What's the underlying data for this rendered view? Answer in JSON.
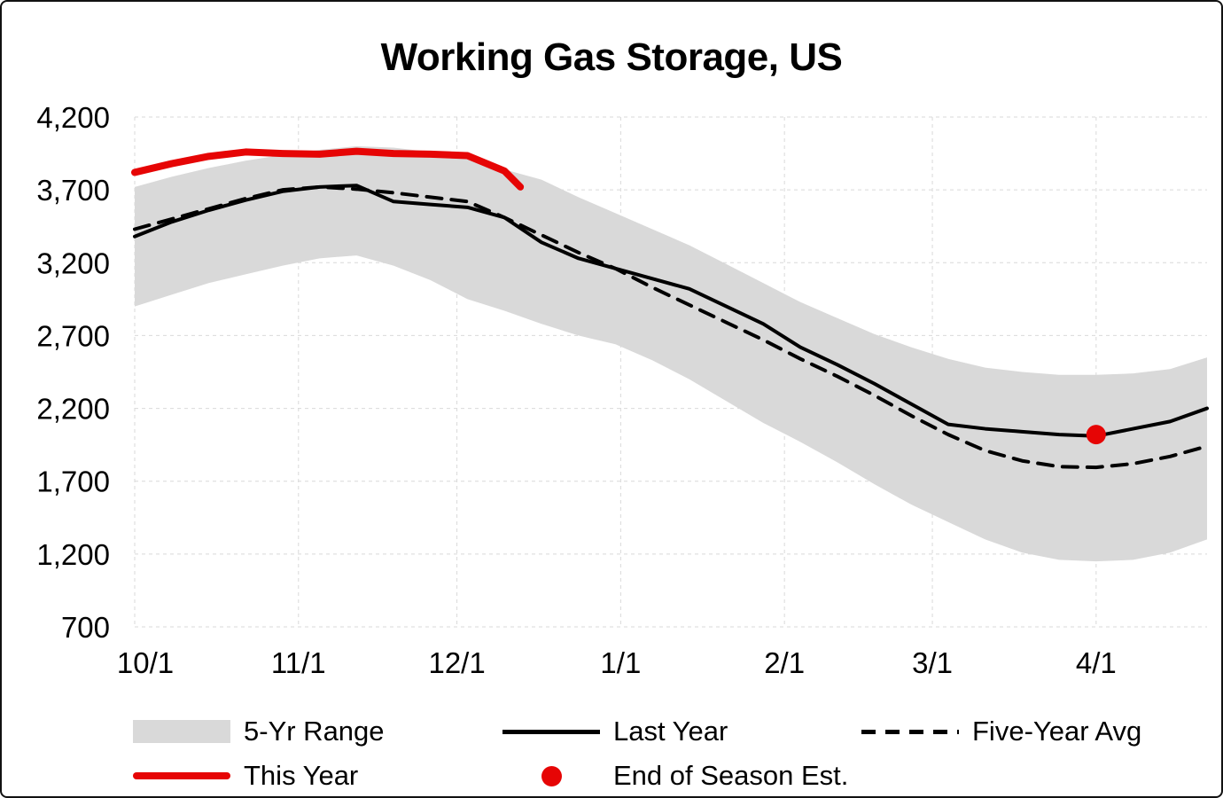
{
  "title": "Working Gas Storage, US",
  "colors": {
    "this_year": "#e60505",
    "last_year": "#000000",
    "five_year_avg": "#000000",
    "range_band": "#d9d9d9",
    "gridline": "#d9d9d9",
    "text": "#000000",
    "background": "#ffffff"
  },
  "legend": {
    "row1": [
      {
        "label": "5-Yr Range",
        "swatch": "band"
      },
      {
        "label": "Last Year",
        "swatch": "solid-line"
      },
      {
        "label": "Five-Year Avg",
        "swatch": "dashed-line"
      }
    ],
    "row2": [
      {
        "label": "This Year",
        "swatch": "red-line"
      },
      {
        "label": "End of Season Est.",
        "swatch": "red-dot"
      }
    ]
  },
  "chart_data": {
    "type": "line",
    "title": "Working Gas Storage, US",
    "xlabel": "",
    "ylabel": "",
    "grid": "light-dashed",
    "legend_position": "bottom",
    "ylim": [
      700,
      4200
    ],
    "y_ticks": [
      700,
      1200,
      1700,
      2200,
      2700,
      3200,
      3700,
      4200
    ],
    "y_tick_labels": [
      "700",
      "1,200",
      "1,700",
      "2,200",
      "2,700",
      "3,200",
      "3,700",
      "4,200"
    ],
    "x_tick_labels": [
      "10/1",
      "11/1",
      "12/1",
      "1/1",
      "2/1",
      "3/1",
      "4/1"
    ],
    "x_tick_days": [
      0,
      31,
      61,
      92,
      123,
      151,
      182
    ],
    "xlim_days": [
      0,
      203
    ],
    "categories": [
      "10/1",
      "10/8",
      "10/15",
      "10/22",
      "10/29",
      "11/5",
      "11/12",
      "11/19",
      "11/26",
      "12/3",
      "12/10",
      "12/17",
      "12/24",
      "12/31",
      "1/7",
      "1/14",
      "1/21",
      "1/28",
      "2/4",
      "2/11",
      "2/18",
      "2/25",
      "3/4",
      "3/11",
      "3/18",
      "3/25",
      "4/1",
      "4/8",
      "4/15",
      "4/22"
    ],
    "x_days": [
      0,
      7,
      14,
      21,
      28,
      35,
      42,
      49,
      56,
      63,
      70,
      77,
      84,
      91,
      98,
      105,
      112,
      119,
      126,
      133,
      140,
      147,
      154,
      161,
      168,
      175,
      182,
      189,
      196,
      203
    ],
    "band": {
      "name": "5-Yr Range",
      "upper": [
        3720,
        3790,
        3850,
        3900,
        3940,
        3975,
        4000,
        3990,
        3960,
        3930,
        3840,
        3770,
        3650,
        3540,
        3430,
        3320,
        3190,
        3060,
        2930,
        2820,
        2710,
        2620,
        2540,
        2480,
        2450,
        2430,
        2430,
        2440,
        2470,
        2550
      ],
      "lower": [
        2900,
        2980,
        3060,
        3120,
        3180,
        3230,
        3250,
        3180,
        3080,
        2950,
        2870,
        2780,
        2700,
        2640,
        2530,
        2400,
        2250,
        2100,
        1970,
        1830,
        1680,
        1540,
        1420,
        1300,
        1210,
        1160,
        1150,
        1160,
        1210,
        1300
      ]
    },
    "series": [
      {
        "id": "last-year",
        "name": "Last Year",
        "style": "solid",
        "color": "#000000",
        "values": [
          3380,
          3480,
          3560,
          3630,
          3690,
          3720,
          3730,
          3620,
          3600,
          3580,
          3510,
          3340,
          3230,
          3160,
          3090,
          3020,
          2900,
          2780,
          2620,
          2500,
          2370,
          2230,
          2090,
          2060,
          2040,
          2020,
          2010,
          2060,
          2110,
          2200
        ]
      },
      {
        "id": "five-year-avg",
        "name": "Five-Year Avg",
        "style": "dashed",
        "color": "#000000",
        "values": [
          3430,
          3500,
          3570,
          3640,
          3700,
          3720,
          3705,
          3680,
          3650,
          3620,
          3510,
          3390,
          3270,
          3160,
          3030,
          2910,
          2790,
          2670,
          2540,
          2420,
          2290,
          2150,
          2020,
          1910,
          1840,
          1800,
          1795,
          1820,
          1870,
          1940
        ]
      },
      {
        "id": "this-year",
        "name": "This Year",
        "style": "solid-thick",
        "color": "#e60505",
        "x_days": [
          0,
          7,
          14,
          21,
          28,
          35,
          42,
          49,
          56,
          63,
          70,
          73
        ],
        "values": [
          3820,
          3880,
          3930,
          3960,
          3950,
          3945,
          3965,
          3950,
          3945,
          3935,
          3830,
          3720
        ]
      }
    ],
    "point": {
      "name": "End of Season Est.",
      "x_day": 182,
      "value": 2020,
      "color": "#e60505"
    }
  }
}
